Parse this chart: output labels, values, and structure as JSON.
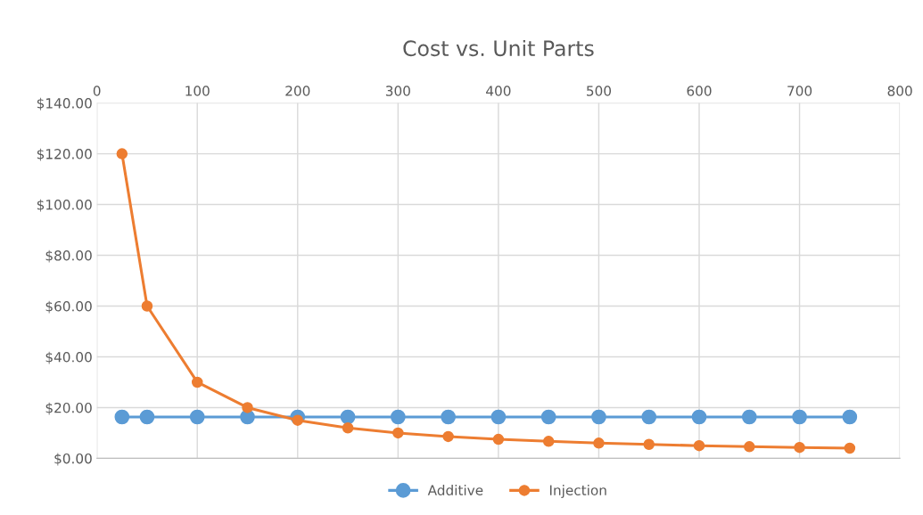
{
  "chart_data": {
    "type": "line",
    "title": "Cost vs. Unit Parts",
    "x": [
      25,
      50,
      100,
      150,
      200,
      250,
      300,
      350,
      400,
      450,
      500,
      550,
      600,
      650,
      700,
      750
    ],
    "series": [
      {
        "name": "Additive",
        "color": "#5b9bd5",
        "values": [
          16.3,
          16.3,
          16.3,
          16.3,
          16.3,
          16.3,
          16.3,
          16.3,
          16.3,
          16.3,
          16.3,
          16.3,
          16.3,
          16.3,
          16.3,
          16.3
        ]
      },
      {
        "name": "Injection",
        "color": "#ed7d31",
        "values": [
          120,
          60,
          30,
          20,
          15,
          12,
          10,
          8.6,
          7.5,
          6.7,
          6,
          5.5,
          5,
          4.6,
          4.3,
          4
        ]
      }
    ],
    "xlim": [
      0,
      800
    ],
    "xticks": [
      0,
      100,
      200,
      300,
      400,
      500,
      600,
      700,
      800
    ],
    "ylim": [
      0,
      140
    ],
    "yticks": [
      {
        "value": 0,
        "label": "$0.00"
      },
      {
        "value": 20,
        "label": "$20.00"
      },
      {
        "value": 40,
        "label": "$40.00"
      },
      {
        "value": 60,
        "label": "$60.00"
      },
      {
        "value": 80,
        "label": "$80.00"
      },
      {
        "value": 100,
        "label": "$100.00"
      },
      {
        "value": 120,
        "label": "$120.00"
      },
      {
        "value": 140,
        "label": "$140.00"
      }
    ],
    "grid": true,
    "legend": "bottom",
    "marker": "circle",
    "line_style": "solid"
  }
}
